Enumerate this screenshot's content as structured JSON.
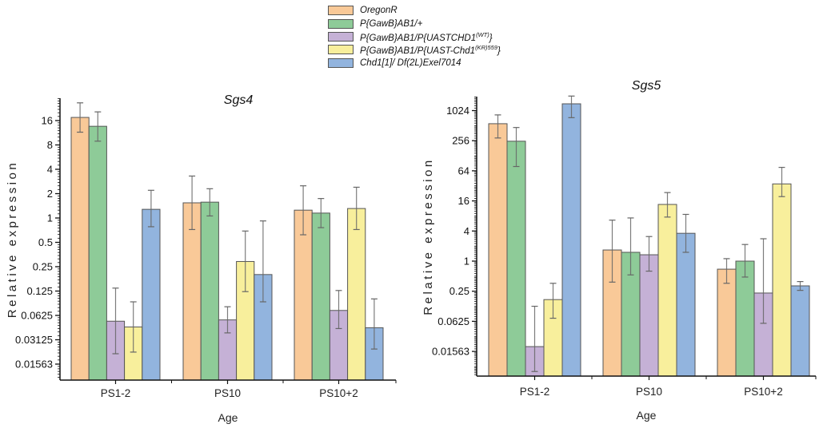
{
  "legend": [
    {
      "label": "OregonR",
      "sup": "",
      "suffix": "",
      "color": "#F9C998"
    },
    {
      "label": "P{GawB}AB1/+",
      "sup": "",
      "suffix": "",
      "color": "#8ECB98"
    },
    {
      "label": "P{GawB}AB1/P{UASTCHD1",
      "sup": "(WT)",
      "suffix": "}",
      "color": "#C5B1D6"
    },
    {
      "label": "P{GawB}AB1/P{UAST-Chd1",
      "sup": "(KR)559",
      "suffix": "}",
      "color": "#F8EF9C"
    },
    {
      "label": "Chd1[1]/ Df(2L)Exel7014",
      "sup": "",
      "suffix": "",
      "color": "#92B4DE"
    }
  ],
  "chart_data": [
    {
      "type": "bar",
      "title": "Sgs4",
      "xlabel": "Age",
      "ylabel": "Relative expression",
      "yscale": "log2",
      "ylim": [
        0.0104,
        41
      ],
      "yticks": [
        16,
        8,
        4,
        2,
        1,
        0.5,
        0.25,
        0.125,
        0.0625,
        0.03125,
        0.01563
      ],
      "ytick_labels": [
        "16",
        "8",
        "4",
        "2",
        "1",
        "0.5",
        "0.25",
        "0.125",
        "0.0625",
        "0.03125",
        "0.01563"
      ],
      "categories": [
        "PS1-2",
        "PS10",
        "PS10+2"
      ],
      "series": [
        {
          "name": "OregonR",
          "values": [
            17.5,
            1.54,
            1.25
          ],
          "err_low": [
            11.5,
            0.72,
            0.62
          ],
          "err_high": [
            26.5,
            3.3,
            2.5
          ]
        },
        {
          "name": "P{GawB}AB1/+",
          "values": [
            13.6,
            1.57,
            1.15
          ],
          "err_low": [
            8.9,
            1.06,
            0.76
          ],
          "err_high": [
            20.5,
            2.3,
            1.74
          ]
        },
        {
          "name": "P{GawB}AB1/P{UASTCHD1(WT)}",
          "values": [
            0.053,
            0.055,
            0.072
          ],
          "err_low": [
            0.021,
            0.038,
            0.043
          ],
          "err_high": [
            0.136,
            0.08,
            0.127
          ]
        },
        {
          "name": "P{GawB}AB1/P{UAST-Chd1(KR)559}",
          "values": [
            0.045,
            0.29,
            1.31
          ],
          "err_low": [
            0.022,
            0.123,
            0.72
          ],
          "err_high": [
            0.092,
            0.69,
            2.4
          ]
        },
        {
          "name": "Chd1[1]/ Df(2L)Exel7014",
          "values": [
            1.28,
            0.2,
            0.044
          ],
          "err_low": [
            0.78,
            0.092,
            0.024
          ],
          "err_high": [
            2.2,
            0.92,
            0.1
          ]
        }
      ]
    },
    {
      "type": "bar",
      "title": "Sgs5",
      "xlabel": "Age",
      "ylabel": "Relative expression",
      "yscale": "log2",
      "ylim": [
        0.0055,
        3000
      ],
      "yticks": [
        1024,
        256,
        64,
        16,
        4,
        1,
        0.25,
        0.0625,
        0.01563
      ],
      "ytick_labels": [
        "1024",
        "256",
        "64",
        "16",
        "4",
        "1",
        "0.25",
        "0.0625",
        "0.01563"
      ],
      "categories": [
        "PS1-2",
        "PS10",
        "PS10+2"
      ],
      "series": [
        {
          "name": "OregonR",
          "values": [
            560,
            1.67,
            0.69
          ],
          "err_low": [
            290,
            0.38,
            0.36
          ],
          "err_high": [
            840,
            6.6,
            1.12
          ]
        },
        {
          "name": "P{GawB}AB1/+",
          "values": [
            250,
            1.5,
            1.0
          ],
          "err_low": [
            78,
            0.53,
            0.48
          ],
          "err_high": [
            470,
            7.3,
            2.15
          ]
        },
        {
          "name": "P{GawB}AB1/P{UASTCHD1(WT)}",
          "values": [
            0.0195,
            1.34,
            0.23
          ],
          "err_low": [
            0.0062,
            0.63,
            0.057
          ],
          "err_high": [
            0.125,
            3.1,
            2.8
          ]
        },
        {
          "name": "P{GawB}AB1/P{UAST-Chd1(KR)559}",
          "values": [
            0.17,
            13.6,
            35
          ],
          "err_low": [
            0.072,
            7.6,
            19.5
          ],
          "err_high": [
            0.36,
            23.5,
            75
          ]
        },
        {
          "name": "Chd1[1]/ Df(2L)Exel7014",
          "values": [
            1400,
            3.6,
            0.32
          ],
          "err_low": [
            740,
            1.5,
            0.26
          ],
          "err_high": [
            2000,
            8.6,
            0.39
          ]
        }
      ]
    }
  ]
}
